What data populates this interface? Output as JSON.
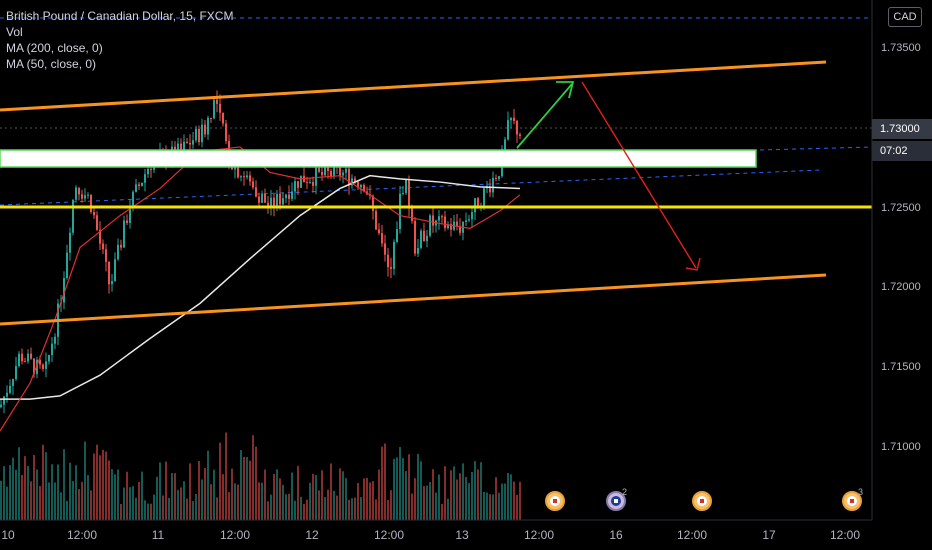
{
  "legend": {
    "title": "British Pound / Canadian Dollar, 15, FXCM",
    "vol": "Vol",
    "ma200": "MA (200, close, 0)",
    "ma50": "MA (50, close, 0)"
  },
  "currency": "CAD",
  "price_axis": [
    "1.73500",
    "1.73000",
    "1.72500",
    "1.72000",
    "1.71500",
    "1.71000"
  ],
  "current_price": "1.73000",
  "countdown": "07:02",
  "time_axis": [
    "10",
    "12:00",
    "11",
    "12:00",
    "12",
    "12:00",
    "13",
    "12:00",
    "16",
    "12:00",
    "17",
    "12:00"
  ],
  "events": [
    {
      "type": "CA",
      "count": ""
    },
    {
      "type": "UK",
      "count": "2"
    },
    {
      "type": "CA",
      "count": ""
    },
    {
      "type": "CA",
      "count": "3"
    }
  ],
  "colors": {
    "channel": "#f7931e",
    "support": "#f5e400",
    "resistance_box": "#ffffff",
    "box_border": "#5ad65a",
    "arrow_up": "#2ecc40",
    "arrow_down": "#e0201c",
    "ma200": "#e8e8e8",
    "ma50": "#e0312f",
    "candle_up": "#26a69a",
    "candle_down": "#ef5350",
    "dashed": "#2962ff",
    "countdown_tag": "#2a2e39",
    "price_tag": "#363a45"
  },
  "chart_data": {
    "type": "candlestick",
    "symbol": "British Pound / Canadian Dollar",
    "timeframe": "15",
    "source": "FXCM",
    "ylim": [
      1.706,
      1.7375
    ],
    "indicators": [
      "Vol",
      "MA (200, close, 0)",
      "MA (50, close, 0)"
    ],
    "annotations": {
      "upper_channel": [
        1.7312,
        1.7342
      ],
      "lower_channel": [
        1.7176,
        1.7205
      ],
      "support_level": 1.725,
      "resistance_zone": [
        1.7278,
        1.7288
      ]
    }
  }
}
